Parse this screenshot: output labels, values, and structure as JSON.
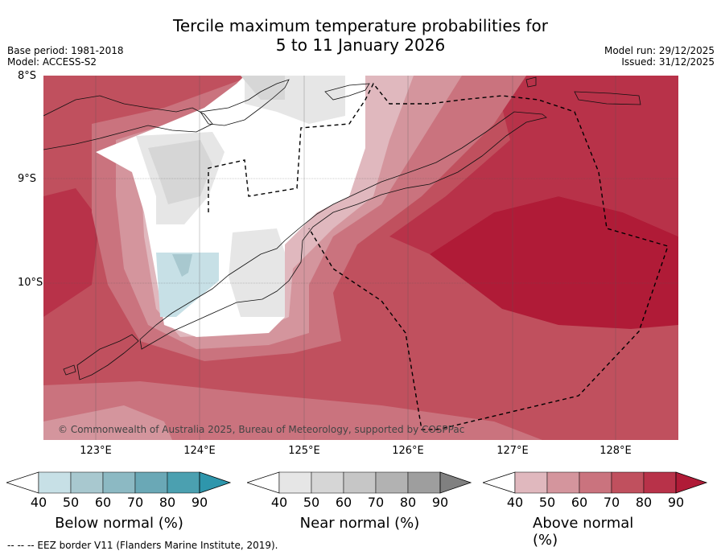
{
  "title": {
    "line1": "Tercile maximum temperature probabilities for",
    "line2": "5 to 11 January 2026"
  },
  "meta": {
    "base_period": "Base period: 1981-2018",
    "model": "Model: ACCESS-S2",
    "model_run": "Model run: 29/12/2025",
    "issued": "Issued: 31/12/2025"
  },
  "axes": {
    "lat_labels": [
      "8°S",
      "9°S",
      "10°S"
    ],
    "lon_labels": [
      "123°E",
      "124°E",
      "125°E",
      "126°E",
      "127°E",
      "128°E"
    ]
  },
  "copyright": "© Commonwealth of Australia 2025, Bureau of Meteorology, supported by COSPPac",
  "colors": {
    "above": [
      "#e0b8be",
      "#d4959d",
      "#ca737e",
      "#c0505e",
      "#b83249",
      "#b01b37"
    ],
    "near": [
      "#e6e6e6",
      "#d6d6d6",
      "#c6c6c6",
      "#b2b2b2",
      "#9e9e9e",
      "#808080"
    ],
    "below": [
      "#c7e0e6",
      "#a8c8cf",
      "#8cb9c3",
      "#6aa8b6",
      "#4ba0b0",
      "#2e96ac"
    ]
  },
  "legends": [
    {
      "label": "Below normal (%)",
      "ticks": [
        "40",
        "50",
        "60",
        "70",
        "80",
        "90"
      ]
    },
    {
      "label": "Near normal (%)",
      "ticks": [
        "40",
        "50",
        "60",
        "70",
        "80",
        "90"
      ]
    },
    {
      "label": "Above normal (%)",
      "ticks": [
        "40",
        "50",
        "60",
        "70",
        "80",
        "90"
      ]
    }
  ],
  "footnote": "--  --  -- EEZ border V11 (Flanders Marine Institute, 2019)."
}
